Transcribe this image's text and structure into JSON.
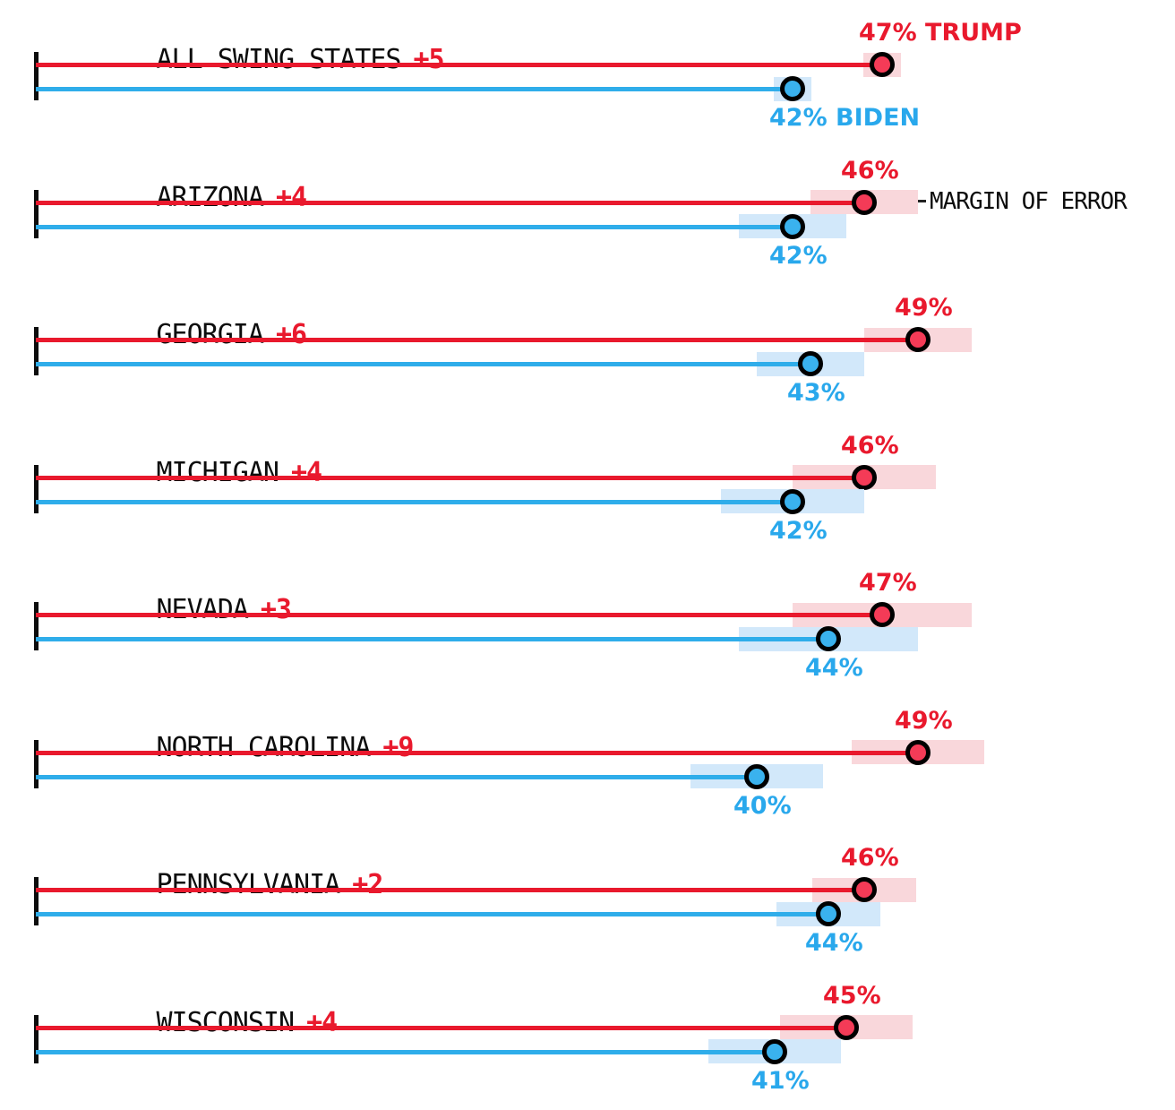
{
  "chart_data": {
    "type": "dumbbell-dot-plot",
    "title": "",
    "description_visible_text_only": true,
    "unit": "percent",
    "x_axis": {
      "min_pct": 0,
      "implied_max_pct": 55,
      "gridlines": false,
      "tick_at_zero": true
    },
    "legend": {
      "trump_series_label": "TRUMP",
      "biden_series_label": "BIDEN",
      "moe_label": "MARGIN OF ERROR"
    },
    "series_names": [
      "Trump",
      "Biden"
    ],
    "states": [
      {
        "name": "ALL SWING STATES",
        "margin": "+5",
        "trump": 47,
        "biden": 42,
        "moe_pts": 1.05,
        "trump_text": "47% TRUMP",
        "biden_text": "42% BIDEN"
      },
      {
        "name": "ARIZONA",
        "margin": "+4",
        "trump": 46,
        "biden": 42,
        "moe_pts": 3.0,
        "trump_text": "46%",
        "biden_text": "42%"
      },
      {
        "name": "GEORGIA",
        "margin": "+6",
        "trump": 49,
        "biden": 43,
        "moe_pts": 3.0,
        "trump_text": "49%",
        "biden_text": "43%"
      },
      {
        "name": "MICHIGAN",
        "margin": "+4",
        "trump": 46,
        "biden": 42,
        "moe_pts": 4.0,
        "trump_text": "46%",
        "biden_text": "42%"
      },
      {
        "name": "NEVADA",
        "margin": "+3",
        "trump": 47,
        "biden": 44,
        "moe_pts": 5.0,
        "trump_text": "47%",
        "biden_text": "44%"
      },
      {
        "name": "NORTH CAROLINA",
        "margin": "+9",
        "trump": 49,
        "biden": 40,
        "moe_pts": 3.7,
        "trump_text": "49%",
        "biden_text": "40%"
      },
      {
        "name": "PENNSYLVANIA",
        "margin": "+2",
        "trump": 46,
        "biden": 44,
        "moe_pts": 2.9,
        "trump_text": "46%",
        "biden_text": "44%"
      },
      {
        "name": "WISCONSIN",
        "margin": "+4",
        "trump": 45,
        "biden": 41,
        "moe_pts": 3.7,
        "trump_text": "45%",
        "biden_text": "41%"
      }
    ],
    "colors": {
      "trump_line": "#e9192d",
      "trump_dot_fill": "#f43b57",
      "trump_moe_box": "#f9d7db",
      "trump_text": "#e9192d",
      "biden_line": "#2fadea",
      "biden_dot_fill": "#3ab2ee",
      "biden_moe_box": "#d2e8fa",
      "biden_text": "#29a8ec",
      "axis_tick": "#0d0d0d",
      "label_text": "#0d0d0d"
    }
  }
}
